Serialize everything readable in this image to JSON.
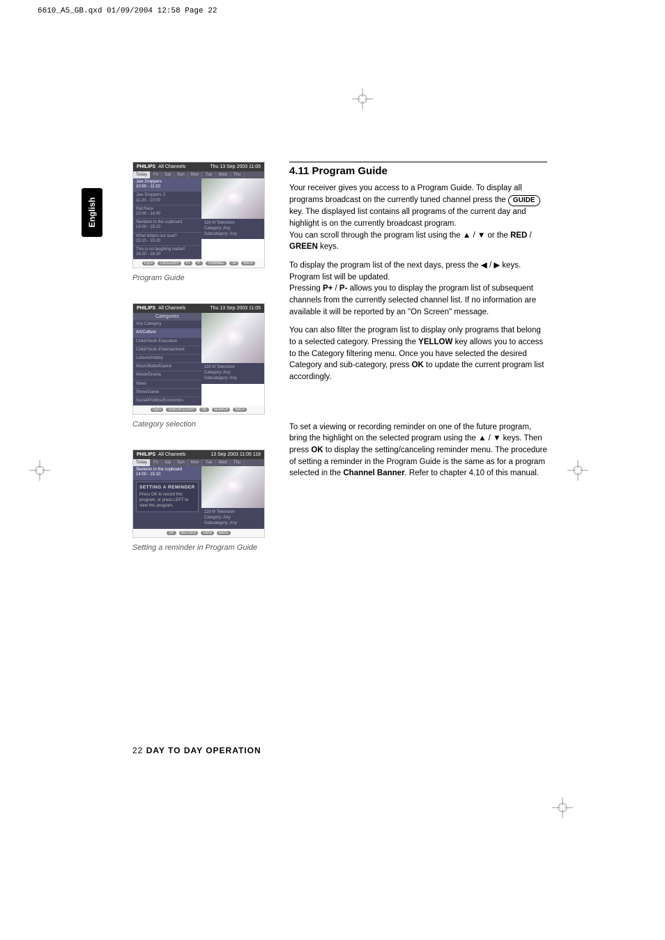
{
  "header": "6610_A5_GB.qxd  01/09/2004  12:58  Page 22",
  "vertical_tab": "English",
  "crop_mark_color": "#999999",
  "screenshots": {
    "guide": {
      "brand": "PHILIPS",
      "title": "All Channels",
      "datetime": "Thu 13 Sep 2003   11:05",
      "tabs": [
        "Today",
        "Fri",
        "Sat",
        "Sun",
        "Mon",
        "Tue",
        "Wed",
        "Thu"
      ],
      "active_tab": 0,
      "rows": [
        {
          "title": "Jaw Droppers",
          "time": "10:50 - 11:20"
        },
        {
          "title": "Jaw Droppers 2",
          "time": "11:20 - 13:00"
        },
        {
          "title": "Rat Race",
          "time": "13:00 - 14:00"
        },
        {
          "title": "Skeleton in the cupboard",
          "time": "14:00 - 15:10"
        },
        {
          "title": "What fetters our soul?",
          "time": "15:10 - 15:20"
        },
        {
          "title": "This is no laughing matter!",
          "time": "16:20 - 18:20"
        }
      ],
      "meta": {
        "channel": "118 M Television",
        "cat": "Category: Any",
        "sub": "Subcategory: Any"
      },
      "footer": [
        "PgDn",
        "CATEGORY",
        "P+",
        "P-",
        "CHANNEL",
        "OK",
        "BACK"
      ]
    },
    "category": {
      "brand": "PHILIPS",
      "title": "All Channels",
      "datetime": "Thu 13 Sep 2003   11:05",
      "panel_title": "Categories",
      "rows": [
        "Any Category",
        "Art/Culture",
        "Child/Youth-Education",
        "Child/Youth-Entertainment",
        "Leisure/Hobby",
        "Music/Ballet/Dance",
        "Movie/Drama",
        "News",
        "Show/Game",
        "Social/Politics/Economics"
      ],
      "meta": {
        "channel": "118 M Television",
        "cat": "Category: Any",
        "sub": "Subcategory: Any"
      },
      "footer": [
        "PgDn",
        "SUBCATEGORY",
        "OK",
        "SEARCH",
        "BACK"
      ]
    },
    "reminder": {
      "brand": "PHILIPS",
      "title": "All Channels",
      "datetime": "13 Sep 2003   11:05     118",
      "tabs": [
        "Today",
        "Fri",
        "Sat",
        "Sun",
        "Mon",
        "Tue",
        "Wed",
        "Thu"
      ],
      "active_tab": 0,
      "row": {
        "title": "Skeleton in the cupboard",
        "time": "14:00 - 15:10"
      },
      "box_title": "SETTING A REMINDER",
      "box_text": "Press OK to record this program, or press LEFT to view this program.",
      "meta": {
        "channel": "118 M Television",
        "cat": "Category: Any",
        "sub": "Subcategory: Any"
      },
      "footer": [
        "OK",
        "RECORD",
        "VIEW",
        "BACK"
      ]
    }
  },
  "captions": {
    "guide": "Program Guide",
    "category": "Category selection",
    "reminder": "Setting a reminder in Program Guide"
  },
  "section": {
    "title": "4.11 Program Guide",
    "p1a": "Your receiver gives you access to a Program Guide. To display all programs broadcast on the currently tuned channel press the ",
    "guide_key": "GUIDE",
    "p1b": " key. The displayed list contains all programs of the current day and highlight is on the currently broadcast program.",
    "p1c": "You can scroll through the program list using the ",
    "p1d": " or the ",
    "red": "RED",
    "slash": " / ",
    "green": "GREEN",
    "p1e": " keys.",
    "p2a": "To display the program list of the next days, press the ",
    "p2b": " keys. Program list will be updated.",
    "p2c": "Pressing ",
    "pplus": "P+",
    "pminus": "P-",
    "p2d": " allows you to display the program list of subsequent channels from the currently selected channel list. If no information are available it will be reported by an \"On Screen\" message.",
    "p3a": "You can also filter the program list to display only programs that belong to a selected category. Pressing the ",
    "yellow": "YELLOW",
    "p3b": " key allows you to access to the Category filtering menu. Once you have selected the desired Category and sub-category, press ",
    "ok": "OK",
    "p3c": " to update the current program list accordingly.",
    "p4a": "To set a viewing or recording reminder on one of the future program, bring the highlight on the selected program using the ",
    "p4b": " keys. Then press ",
    "p4c": " to display the setting/canceling reminder menu. The procedure of setting a reminder in the Program Guide is the same as for a program selected in the ",
    "cb": "Channel Banner",
    "p4d": ". Refer to chapter 4.10 of this manual."
  },
  "footer": {
    "page": "22",
    "title": "DAY TO DAY OPERATION"
  },
  "arrows": {
    "up": "▲",
    "down": "▼",
    "left": "◀",
    "right": "▶"
  }
}
